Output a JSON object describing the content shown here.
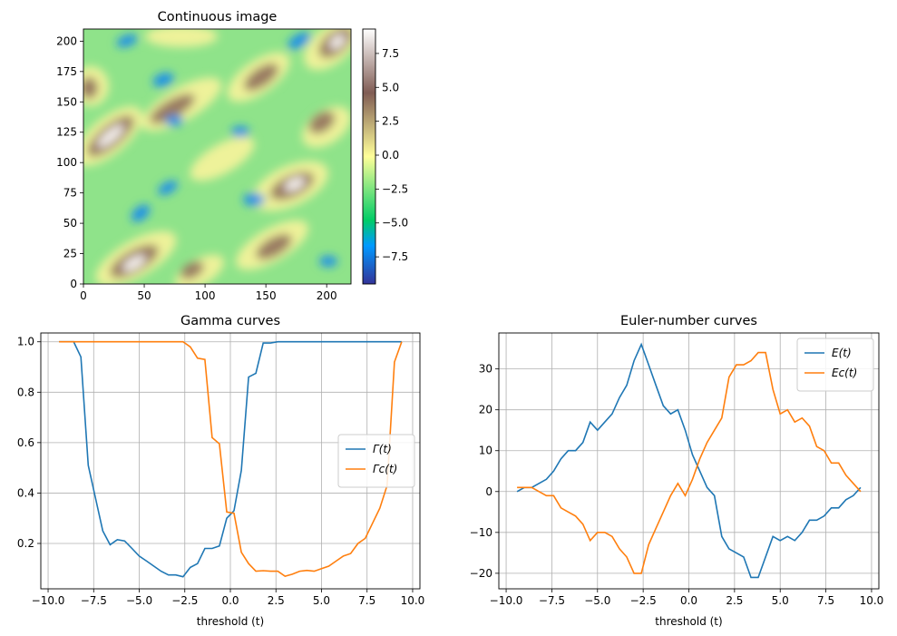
{
  "chart_data": [
    {
      "type": "heatmap",
      "title": "Continuous image",
      "colormap": "terrain",
      "xlim": [
        0,
        220
      ],
      "ylim": [
        0,
        210
      ],
      "xticks": [
        0,
        50,
        100,
        150,
        200
      ],
      "yticks": [
        0,
        25,
        50,
        75,
        100,
        125,
        150,
        175,
        200
      ],
      "clim": [
        -9.5,
        9.3
      ],
      "cticks": [
        {
          "value": -7.5,
          "label": "−7.5"
        },
        {
          "value": -5,
          "label": "−5.0"
        },
        {
          "value": -2.5,
          "label": "−2.5"
        },
        {
          "value": 0,
          "label": "0.0"
        },
        2.5,
        {
          "value": 5,
          "label": "5.0"
        },
        7.5
      ]
    },
    {
      "type": "line",
      "title": "Gamma curves",
      "xlabel": "threshold (t)",
      "grid": true,
      "legend": "center right",
      "x": [
        -9.4,
        -9.0,
        -8.6,
        -8.2,
        -7.8,
        -7.4,
        -7.0,
        -6.6,
        -6.2,
        -5.8,
        -5.4,
        -5.0,
        -4.6,
        -4.2,
        -3.8,
        -3.4,
        -3.0,
        -2.6,
        -2.2,
        -1.8,
        -1.4,
        -1.0,
        -0.6,
        -0.2,
        0.2,
        0.6,
        1.0,
        1.4,
        1.8,
        2.2,
        2.6,
        3.0,
        3.4,
        3.8,
        4.2,
        4.6,
        5.0,
        5.4,
        5.8,
        6.2,
        6.6,
        7.0,
        7.4,
        7.8,
        8.2,
        8.6,
        9.0,
        9.4
      ],
      "series": [
        {
          "name": "Γ(t)",
          "color": "#1f77b4",
          "values": [
            1,
            1,
            1,
            0.94,
            0.51,
            0.38,
            0.25,
            0.195,
            0.215,
            0.21,
            0.18,
            0.15,
            0.13,
            0.11,
            0.09,
            0.075,
            0.075,
            0.068,
            0.105,
            0.12,
            0.18,
            0.18,
            0.19,
            0.3,
            0.33,
            0.49,
            0.86,
            0.875,
            0.995,
            0.995,
            1,
            1,
            1,
            1,
            1,
            1,
            1,
            1,
            1,
            1,
            1,
            1,
            1,
            1,
            1,
            1,
            1,
            1
          ]
        },
        {
          "name": "Γc(t)",
          "color": "#ff7f0e",
          "values": [
            1,
            1,
            1,
            1,
            1,
            1,
            1,
            1,
            1,
            1,
            1,
            1,
            1,
            1,
            1,
            1,
            1,
            1,
            0.98,
            0.935,
            0.93,
            0.62,
            0.595,
            0.325,
            0.32,
            0.165,
            0.12,
            0.09,
            0.092,
            0.09,
            0.09,
            0.07,
            0.078,
            0.09,
            0.093,
            0.09,
            0.1,
            0.11,
            0.13,
            0.15,
            0.16,
            0.2,
            0.22,
            0.28,
            0.34,
            0.43,
            0.92,
            1.0
          ]
        }
      ],
      "xlim": [
        -10.4,
        10.4
      ],
      "ylim": [
        0.02,
        1.035
      ],
      "xticks": [
        {
          "value": -10,
          "label": "−10.0"
        },
        {
          "value": -7.5,
          "label": "−7.5"
        },
        {
          "value": -5,
          "label": "−5.0"
        },
        {
          "value": -2.5,
          "label": "−2.5"
        },
        {
          "value": 0,
          "label": "0.0"
        },
        2.5,
        {
          "value": 5,
          "label": "5.0"
        },
        7.5,
        {
          "value": 10,
          "label": "10.0"
        }
      ],
      "yticks": [
        0.2,
        0.4,
        0.6,
        0.8,
        {
          "value": 1,
          "label": "1.0"
        }
      ]
    },
    {
      "type": "line",
      "title": "Euler-number curves",
      "xlabel": "threshold (t)",
      "grid": true,
      "legend": "upper right",
      "x": [
        -9.4,
        -9.0,
        -8.6,
        -8.2,
        -7.8,
        -7.4,
        -7.0,
        -6.6,
        -6.2,
        -5.8,
        -5.4,
        -5.0,
        -4.6,
        -4.2,
        -3.8,
        -3.4,
        -3.0,
        -2.6,
        -2.2,
        -1.8,
        -1.4,
        -1.0,
        -0.6,
        -0.2,
        0.2,
        0.6,
        1.0,
        1.4,
        1.8,
        2.2,
        2.6,
        3.0,
        3.4,
        3.8,
        4.2,
        4.6,
        5.0,
        5.4,
        5.8,
        6.2,
        6.6,
        7.0,
        7.4,
        7.8,
        8.2,
        8.6,
        9.0,
        9.4
      ],
      "series": [
        {
          "name": "E(t)",
          "color": "#1f77b4",
          "values": [
            0,
            1,
            1,
            2,
            3,
            5,
            8,
            10,
            10,
            12,
            17,
            15,
            17,
            19,
            23,
            26,
            32,
            36,
            31,
            26,
            21,
            19,
            20,
            15,
            9,
            5,
            1,
            -1,
            -11,
            -14,
            -15,
            -16,
            -21,
            -21,
            -16,
            -11,
            -12,
            -11,
            -12,
            -10,
            -7,
            -7,
            -6,
            -4,
            -4,
            -2,
            -1,
            1
          ]
        },
        {
          "name": "Ec(t)",
          "color": "#ff7f0e",
          "values": [
            1,
            1,
            1,
            0,
            -1,
            -1,
            -4,
            -5,
            -6,
            -8,
            -12,
            -10,
            -10,
            -11,
            -14,
            -16,
            -20,
            -20,
            -13,
            -9,
            -5,
            -1,
            2,
            -1,
            3,
            8,
            12,
            15,
            18,
            28,
            31,
            31,
            32,
            34,
            34,
            25,
            19,
            20,
            17,
            18,
            16,
            11,
            10,
            7,
            7,
            4,
            2,
            0
          ]
        }
      ],
      "xlim": [
        -10.4,
        10.4
      ],
      "ylim": [
        -23.8,
        38.8
      ],
      "xticks": [
        {
          "value": -10,
          "label": "−10.0"
        },
        {
          "value": -7.5,
          "label": "−7.5"
        },
        {
          "value": -5,
          "label": "−5.0"
        },
        {
          "value": -2.5,
          "label": "−2.5"
        },
        {
          "value": 0,
          "label": "0.0"
        },
        2.5,
        {
          "value": 5,
          "label": "5.0"
        },
        7.5,
        {
          "value": 10,
          "label": "10.0"
        }
      ],
      "yticks": [
        {
          "value": -20,
          "label": "−20"
        },
        {
          "value": -10,
          "label": "−10"
        },
        0,
        10,
        20,
        30
      ]
    }
  ]
}
